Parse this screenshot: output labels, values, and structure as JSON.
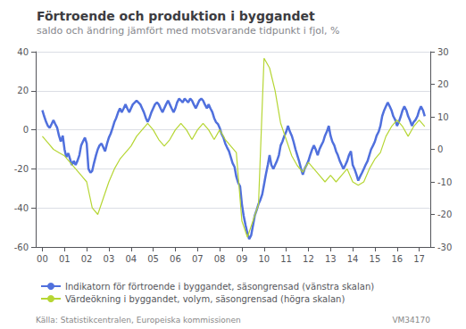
{
  "chart_data": {
    "type": "line",
    "title": "Förtroende och produktion i byggandet",
    "subtitle": "saldo och ändring jämfört med motsvarande tidpunkt i fjol, %",
    "annotations": [
      "Källa: Statistikcentralen, Europeiska kommissionen",
      "VM34170"
    ],
    "xlim": [
      -0.3,
      17.5
    ],
    "xticks": [
      {
        "value": 0,
        "label": "00"
      },
      {
        "value": 1,
        "label": "01"
      },
      {
        "value": 2,
        "label": "02"
      },
      {
        "value": 3,
        "label": "03"
      },
      {
        "value": 4,
        "label": "04"
      },
      {
        "value": 5,
        "label": "05"
      },
      {
        "value": 6,
        "label": "06"
      },
      {
        "value": 7,
        "label": "07"
      },
      {
        "value": 8,
        "label": "08"
      },
      {
        "value": 9,
        "label": "09"
      },
      10,
      11,
      12,
      13,
      14,
      15,
      16,
      17
    ],
    "ylim": [
      -60,
      40
    ],
    "yticks": [
      -60,
      -40,
      -20,
      0,
      20,
      40
    ],
    "y2lim": [
      -30,
      30
    ],
    "y2ticks": [
      -30,
      -20,
      -10,
      0,
      10,
      20,
      30
    ],
    "grid": true,
    "legend": "bottom",
    "series": [
      {
        "name": "Indikatorn för förtroende i byggandet, säsongrensad (vänstra skalan)",
        "axis": "y",
        "x": [
          0,
          0.08,
          0.17,
          0.25,
          0.33,
          0.42,
          0.5,
          0.58,
          0.67,
          0.75,
          0.83,
          0.92,
          1.0,
          1.08,
          1.17,
          1.25,
          1.33,
          1.42,
          1.5,
          1.58,
          1.67,
          1.75,
          1.83,
          1.92,
          2.0,
          2.08,
          2.17,
          2.25,
          2.33,
          2.42,
          2.5,
          2.58,
          2.67,
          2.75,
          2.83,
          2.92,
          3.0,
          3.08,
          3.17,
          3.25,
          3.33,
          3.42,
          3.5,
          3.58,
          3.67,
          3.75,
          3.83,
          3.92,
          4.0,
          4.08,
          4.17,
          4.25,
          4.33,
          4.42,
          4.5,
          4.58,
          4.67,
          4.75,
          4.83,
          4.92,
          5.0,
          5.08,
          5.17,
          5.25,
          5.33,
          5.42,
          5.5,
          5.58,
          5.67,
          5.75,
          5.83,
          5.92,
          6.0,
          6.08,
          6.17,
          6.25,
          6.33,
          6.42,
          6.5,
          6.58,
          6.67,
          6.75,
          6.83,
          6.92,
          7.0,
          7.08,
          7.17,
          7.25,
          7.33,
          7.42,
          7.5,
          7.58,
          7.67,
          7.75,
          7.83,
          7.92,
          8.0,
          8.08,
          8.17,
          8.25,
          8.33,
          8.42,
          8.5,
          8.58,
          8.67,
          8.75,
          8.83,
          8.92,
          9.0,
          9.08,
          9.17,
          9.25,
          9.33,
          9.42,
          9.5,
          9.58,
          9.67,
          9.75,
          9.83,
          9.92,
          10.0,
          10.08,
          10.17,
          10.25,
          10.33,
          10.42,
          10.5,
          10.58,
          10.67,
          10.75,
          10.83,
          10.92,
          11.0,
          11.08,
          11.17,
          11.25,
          11.33,
          11.42,
          11.5,
          11.58,
          11.67,
          11.75,
          11.83,
          11.92,
          12.0,
          12.08,
          12.17,
          12.25,
          12.33,
          12.42,
          12.5,
          12.58,
          12.67,
          12.75,
          12.83,
          12.92,
          13.0,
          13.08,
          13.17,
          13.25,
          13.33,
          13.42,
          13.5,
          13.58,
          13.67,
          13.75,
          13.83,
          13.92,
          14.0,
          14.08,
          14.17,
          14.25,
          14.33,
          14.42,
          14.5,
          14.58,
          14.67,
          14.75,
          14.83,
          14.92,
          15.0,
          15.08,
          15.17,
          15.25,
          15.33,
          15.42,
          15.5,
          15.58,
          15.67,
          15.75,
          15.83,
          15.92,
          16.0,
          16.08,
          16.17,
          16.25,
          16.33,
          16.42,
          16.5,
          16.58,
          16.67,
          16.75,
          16.83,
          16.92,
          17.0,
          17.08,
          17.17,
          17.25
        ],
        "values": [
          10,
          7,
          4,
          2,
          1,
          3,
          5,
          3,
          1,
          -3,
          -6,
          -3,
          -10,
          -14,
          -12,
          -15,
          -18,
          -16,
          -18,
          -16,
          -13,
          -8,
          -6,
          -4,
          -7,
          -20,
          -22,
          -21,
          -17,
          -13,
          -10,
          -8,
          -7,
          -9,
          -11,
          -7,
          -4,
          -2,
          1,
          4,
          6,
          9,
          11,
          9,
          11,
          13,
          11,
          9,
          11,
          13,
          14,
          15,
          14,
          13,
          11,
          9,
          6,
          4,
          6,
          9,
          11,
          13,
          14,
          13,
          11,
          9,
          11,
          13,
          15,
          13,
          11,
          9,
          11,
          14,
          16,
          15,
          14,
          16,
          15,
          14,
          16,
          15,
          13,
          11,
          13,
          15,
          16,
          15,
          13,
          11,
          13,
          11,
          9,
          6,
          4,
          3,
          1,
          -2,
          -4,
          -7,
          -9,
          -11,
          -14,
          -17,
          -19,
          -24,
          -27,
          -29,
          -38,
          -44,
          -49,
          -53,
          -56,
          -54,
          -49,
          -44,
          -41,
          -38,
          -36,
          -33,
          -28,
          -23,
          -18,
          -13,
          -18,
          -20,
          -18,
          -16,
          -13,
          -8,
          -6,
          -3,
          -1,
          2,
          -1,
          -3,
          -6,
          -10,
          -13,
          -16,
          -20,
          -23,
          -20,
          -18,
          -16,
          -13,
          -10,
          -8,
          -10,
          -13,
          -10,
          -8,
          -6,
          -3,
          -1,
          2,
          -3,
          -6,
          -8,
          -11,
          -13,
          -16,
          -18,
          -20,
          -18,
          -16,
          -13,
          -11,
          -18,
          -20,
          -23,
          -26,
          -24,
          -22,
          -20,
          -18,
          -16,
          -13,
          -10,
          -8,
          -6,
          -3,
          -1,
          2,
          7,
          10,
          12,
          14,
          12,
          10,
          7,
          5,
          2,
          4,
          7,
          10,
          12,
          10,
          7,
          5,
          2,
          4,
          5,
          7,
          10,
          12,
          10,
          7
        ]
      },
      {
        "name": "Värdeökning i byggandet, volym, säsongrensad (högra skalan)",
        "axis": "y2",
        "x": [
          0,
          0.25,
          0.5,
          0.75,
          1.0,
          1.25,
          1.5,
          1.75,
          2.0,
          2.25,
          2.5,
          2.75,
          3.0,
          3.25,
          3.5,
          3.75,
          4.0,
          4.25,
          4.5,
          4.75,
          5.0,
          5.25,
          5.5,
          5.75,
          6.0,
          6.25,
          6.5,
          6.75,
          7.0,
          7.25,
          7.5,
          7.75,
          8.0,
          8.25,
          8.5,
          8.75,
          9.0,
          9.25,
          9.5,
          9.75,
          10.0,
          10.25,
          10.5,
          10.75,
          11.0,
          11.25,
          11.5,
          11.75,
          12.0,
          12.25,
          12.5,
          12.75,
          13.0,
          13.25,
          13.5,
          13.75,
          14.0,
          14.25,
          14.5,
          14.75,
          15.0,
          15.25,
          15.5,
          15.75,
          16.0,
          16.25,
          16.5,
          16.75,
          17.0,
          17.25
        ],
        "values": [
          4,
          2,
          0,
          -1,
          -2,
          -4,
          -6,
          -8,
          -10,
          -18,
          -20,
          -15,
          -10,
          -6,
          -3,
          -1,
          1,
          4,
          6,
          8,
          6,
          3,
          1,
          3,
          6,
          8,
          6,
          3,
          6,
          8,
          6,
          3,
          6,
          3,
          1,
          -1,
          -22,
          -27,
          -22,
          -17,
          28,
          25,
          18,
          8,
          3,
          -2,
          -5,
          -7,
          -4,
          -6,
          -8,
          -10,
          -8,
          -10,
          -8,
          -6,
          -10,
          -11,
          -10,
          -6,
          -3,
          -1,
          4,
          7,
          9,
          7,
          4,
          7,
          9,
          7
        ]
      }
    ]
  }
}
